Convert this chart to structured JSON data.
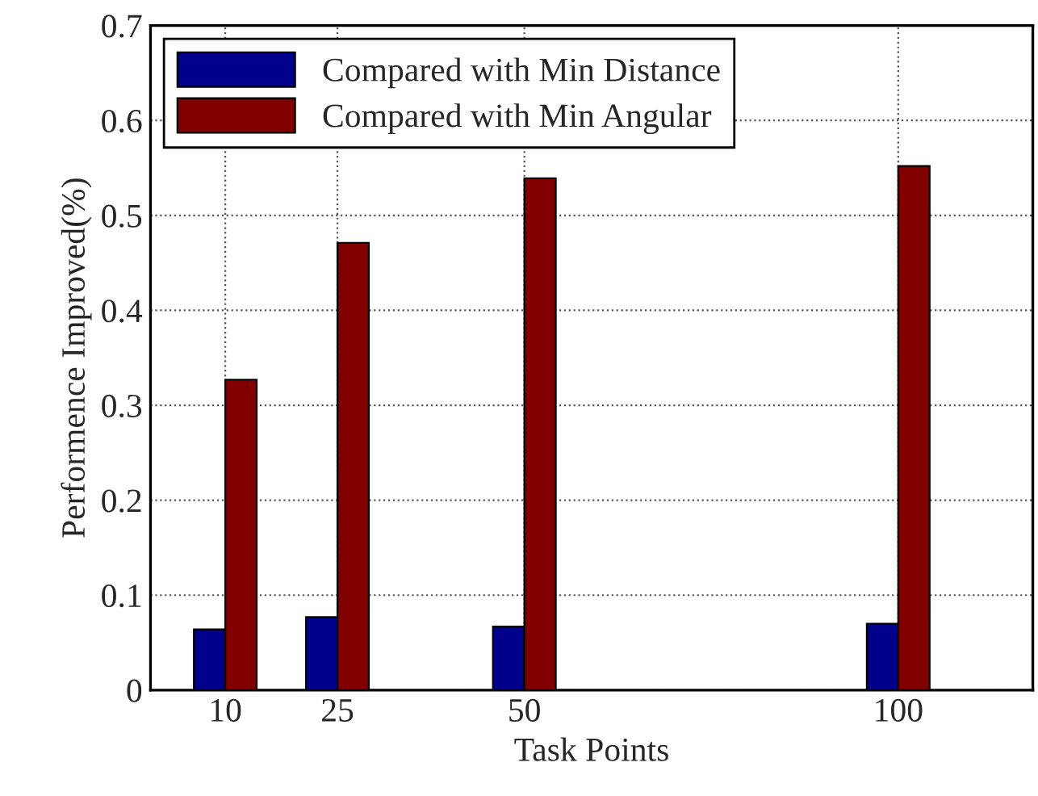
{
  "chart_data": {
    "type": "bar",
    "xlabel": "Task Points",
    "ylabel": "Performence Improved(%)",
    "x": [
      10,
      25,
      50,
      100
    ],
    "series": [
      {
        "name": "Compared with Min Distance",
        "color": "#00008b",
        "values": [
          0.064,
          0.077,
          0.067,
          0.07
        ]
      },
      {
        "name": "Compared with Min Angular",
        "color": "#800000",
        "values": [
          0.327,
          0.471,
          0.539,
          0.552
        ]
      }
    ],
    "xlim": [
      0,
      118
    ],
    "xticks": [
      10,
      25,
      50,
      100
    ],
    "ylim": [
      0,
      0.7
    ],
    "yticks": [
      0,
      0.1,
      0.2,
      0.3,
      0.4,
      0.5,
      0.6,
      0.7
    ],
    "grid": true,
    "legend": "top left"
  }
}
